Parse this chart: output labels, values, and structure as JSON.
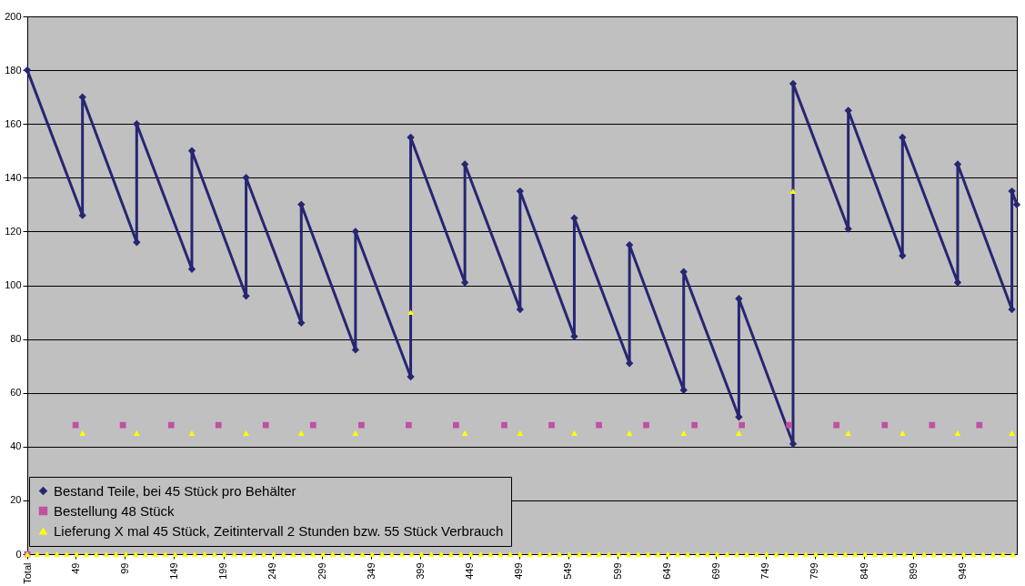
{
  "chart_data": {
    "type": "line",
    "xlim": [
      0,
      1004
    ],
    "xticks": [
      {
        "value": 0,
        "label": "Total"
      },
      49,
      99,
      149,
      199,
      249,
      299,
      349,
      399,
      449,
      499,
      549,
      599,
      649,
      699,
      749,
      799,
      849,
      899,
      949
    ],
    "ylim": [
      0,
      200
    ],
    "yticks": [
      0,
      20,
      40,
      60,
      80,
      100,
      120,
      140,
      160,
      180,
      200
    ],
    "grid": "y",
    "legend": "bottom left",
    "series": [
      {
        "name": "Bestand Teile, bei 45 Stück pro Behälter",
        "type": "line",
        "marker": "diamond",
        "color": "#262673",
        "x": [
          0,
          56,
          56,
          111,
          111,
          167,
          167,
          222,
          222,
          278,
          278,
          333,
          333,
          389,
          389,
          444,
          444,
          500,
          500,
          555,
          555,
          611,
          611,
          666,
          666,
          722,
          722,
          777,
          777,
          833,
          833,
          888,
          888,
          944,
          944,
          999,
          999,
          1004
        ],
        "values": [
          180,
          126,
          170,
          116,
          160,
          106,
          150,
          96,
          140,
          86,
          130,
          76,
          120,
          66,
          155,
          101,
          145,
          91,
          135,
          81,
          125,
          71,
          115,
          61,
          105,
          51,
          95,
          41,
          175,
          121,
          165,
          111,
          155,
          101,
          145,
          91,
          135,
          130
        ]
      },
      {
        "name": "Bestellung 48 Stück",
        "type": "scatter",
        "marker": "square",
        "color": "#c050a0",
        "x": [
          0,
          49,
          97,
          146,
          194,
          242,
          290,
          339,
          387,
          435,
          484,
          532,
          580,
          628,
          677,
          725,
          773,
          821,
          870,
          918,
          966
        ],
        "values": [
          0,
          48,
          48,
          48,
          48,
          48,
          48,
          48,
          48,
          48,
          48,
          48,
          48,
          48,
          48,
          48,
          48,
          48,
          48,
          48,
          48
        ]
      },
      {
        "name": "Lieferung X mal 45 Stück, Zeitintervall 2 Stunden bzw. 55 Stück Verbrauch",
        "type": "scatter",
        "marker": "triangle",
        "color": "#ffff00",
        "x": [
          0,
          10,
          20,
          30,
          40,
          50,
          56,
          60,
          70,
          80,
          90,
          100,
          110,
          111,
          120,
          130,
          140,
          150,
          160,
          167,
          170,
          180,
          190,
          200,
          210,
          220,
          222,
          230,
          240,
          250,
          260,
          270,
          278,
          280,
          290,
          300,
          310,
          320,
          330,
          333,
          340,
          350,
          360,
          370,
          380,
          389,
          390,
          400,
          410,
          420,
          430,
          440,
          444,
          450,
          460,
          470,
          480,
          490,
          500,
          500,
          510,
          520,
          530,
          540,
          550,
          555,
          560,
          570,
          580,
          590,
          600,
          610,
          611,
          620,
          630,
          640,
          650,
          660,
          666,
          670,
          680,
          690,
          700,
          710,
          720,
          722,
          730,
          740,
          750,
          760,
          770,
          777,
          780,
          790,
          800,
          810,
          820,
          830,
          833,
          840,
          850,
          860,
          870,
          880,
          888,
          890,
          900,
          910,
          920,
          930,
          940,
          944,
          950,
          960,
          970,
          980,
          990,
          999,
          1000
        ],
        "values": [
          0,
          0,
          0,
          0,
          0,
          0,
          45,
          0,
          0,
          0,
          0,
          0,
          0,
          45,
          0,
          0,
          0,
          0,
          0,
          45,
          0,
          0,
          0,
          0,
          0,
          0,
          45,
          0,
          0,
          0,
          0,
          0,
          45,
          0,
          0,
          0,
          0,
          0,
          0,
          45,
          0,
          0,
          0,
          0,
          0,
          90,
          0,
          0,
          0,
          0,
          0,
          0,
          45,
          0,
          0,
          0,
          0,
          0,
          0,
          45,
          0,
          0,
          0,
          0,
          0,
          45,
          0,
          0,
          0,
          0,
          0,
          0,
          45,
          0,
          0,
          0,
          0,
          0,
          45,
          0,
          0,
          0,
          0,
          0,
          0,
          45,
          0,
          0,
          0,
          0,
          0,
          135,
          0,
          0,
          0,
          0,
          0,
          0,
          45,
          0,
          0,
          0,
          0,
          0,
          45,
          0,
          0,
          0,
          0,
          0,
          0,
          45,
          0,
          0,
          0,
          0,
          0,
          45,
          0
        ]
      }
    ]
  }
}
